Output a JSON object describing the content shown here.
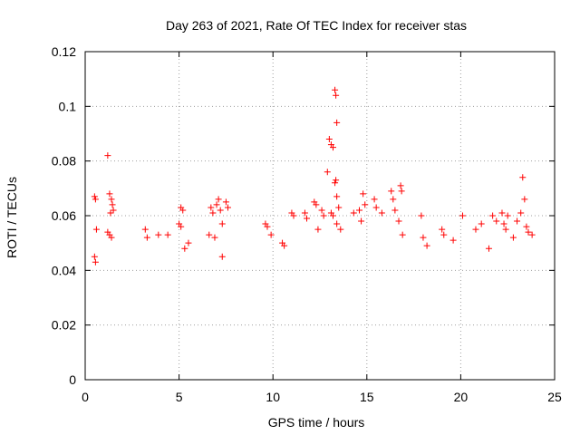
{
  "chart_data": {
    "type": "scatter",
    "title": "Day 263 of 2021, Rate Of TEC Index for receiver stas",
    "xlabel": "GPS time / hours",
    "ylabel": "ROTI / TECUs",
    "xlim": [
      0,
      25
    ],
    "ylim": [
      0,
      0.12
    ],
    "xticks": [
      0,
      5,
      10,
      15,
      20,
      25
    ],
    "xtick_labels": [
      "0",
      "5",
      "10",
      "15",
      "20",
      "25"
    ],
    "yticks": [
      0,
      0.02,
      0.04,
      0.06,
      0.08,
      0.1,
      0.12
    ],
    "ytick_labels": [
      "0",
      "0.02",
      "0.04",
      "0.06",
      "0.08",
      "0.1",
      "0.12"
    ],
    "grid": true,
    "marker": "+",
    "color": "#ff0000",
    "series": [
      {
        "name": "stas",
        "points": [
          [
            1.2,
            0.082
          ],
          [
            13.0,
            0.088
          ],
          [
            13.1,
            0.086
          ],
          [
            13.2,
            0.085
          ],
          [
            13.3,
            0.106
          ],
          [
            13.35,
            0.104
          ],
          [
            13.4,
            0.094
          ],
          [
            13.35,
            0.073
          ],
          [
            12.9,
            0.076
          ],
          [
            13.3,
            0.072
          ],
          [
            0.5,
            0.067
          ],
          [
            0.55,
            0.066
          ],
          [
            1.3,
            0.068
          ],
          [
            1.4,
            0.066
          ],
          [
            1.45,
            0.064
          ],
          [
            1.5,
            0.062
          ],
          [
            1.35,
            0.061
          ],
          [
            0.6,
            0.055
          ],
          [
            1.2,
            0.054
          ],
          [
            1.3,
            0.053
          ],
          [
            1.4,
            0.052
          ],
          [
            0.5,
            0.045
          ],
          [
            0.55,
            0.043
          ],
          [
            3.2,
            0.055
          ],
          [
            3.3,
            0.052
          ],
          [
            3.9,
            0.053
          ],
          [
            4.4,
            0.053
          ],
          [
            5.1,
            0.063
          ],
          [
            5.2,
            0.062
          ],
          [
            5.0,
            0.057
          ],
          [
            5.1,
            0.056
          ],
          [
            5.3,
            0.048
          ],
          [
            5.5,
            0.05
          ],
          [
            6.7,
            0.063
          ],
          [
            6.8,
            0.061
          ],
          [
            7.0,
            0.064
          ],
          [
            7.1,
            0.066
          ],
          [
            7.2,
            0.062
          ],
          [
            7.5,
            0.065
          ],
          [
            7.6,
            0.063
          ],
          [
            7.3,
            0.057
          ],
          [
            6.6,
            0.053
          ],
          [
            6.9,
            0.052
          ],
          [
            7.3,
            0.045
          ],
          [
            9.6,
            0.057
          ],
          [
            9.7,
            0.056
          ],
          [
            9.9,
            0.053
          ],
          [
            10.5,
            0.05
          ],
          [
            10.6,
            0.049
          ],
          [
            11.0,
            0.061
          ],
          [
            11.1,
            0.06
          ],
          [
            11.7,
            0.061
          ],
          [
            11.8,
            0.059
          ],
          [
            12.2,
            0.065
          ],
          [
            12.3,
            0.064
          ],
          [
            12.6,
            0.062
          ],
          [
            12.7,
            0.06
          ],
          [
            12.4,
            0.055
          ],
          [
            13.1,
            0.061
          ],
          [
            13.2,
            0.06
          ],
          [
            13.4,
            0.067
          ],
          [
            13.5,
            0.063
          ],
          [
            13.4,
            0.057
          ],
          [
            13.6,
            0.055
          ],
          [
            14.3,
            0.061
          ],
          [
            14.6,
            0.062
          ],
          [
            14.7,
            0.058
          ],
          [
            14.8,
            0.068
          ],
          [
            14.9,
            0.064
          ],
          [
            15.4,
            0.066
          ],
          [
            15.5,
            0.063
          ],
          [
            15.8,
            0.061
          ],
          [
            16.3,
            0.069
          ],
          [
            16.4,
            0.066
          ],
          [
            16.8,
            0.071
          ],
          [
            16.85,
            0.069
          ],
          [
            16.5,
            0.062
          ],
          [
            16.7,
            0.058
          ],
          [
            16.9,
            0.053
          ],
          [
            17.9,
            0.06
          ],
          [
            18.0,
            0.052
          ],
          [
            18.2,
            0.049
          ],
          [
            19.0,
            0.055
          ],
          [
            19.1,
            0.053
          ],
          [
            19.6,
            0.051
          ],
          [
            20.1,
            0.06
          ],
          [
            20.8,
            0.055
          ],
          [
            21.1,
            0.057
          ],
          [
            21.7,
            0.06
          ],
          [
            21.9,
            0.058
          ],
          [
            22.2,
            0.061
          ],
          [
            22.3,
            0.057
          ],
          [
            22.5,
            0.06
          ],
          [
            23.3,
            0.074
          ],
          [
            23.4,
            0.066
          ],
          [
            23.2,
            0.061
          ],
          [
            23.0,
            0.058
          ],
          [
            23.5,
            0.056
          ],
          [
            23.6,
            0.054
          ],
          [
            23.8,
            0.053
          ],
          [
            22.8,
            0.052
          ],
          [
            22.4,
            0.055
          ],
          [
            21.5,
            0.048
          ]
        ]
      }
    ]
  }
}
